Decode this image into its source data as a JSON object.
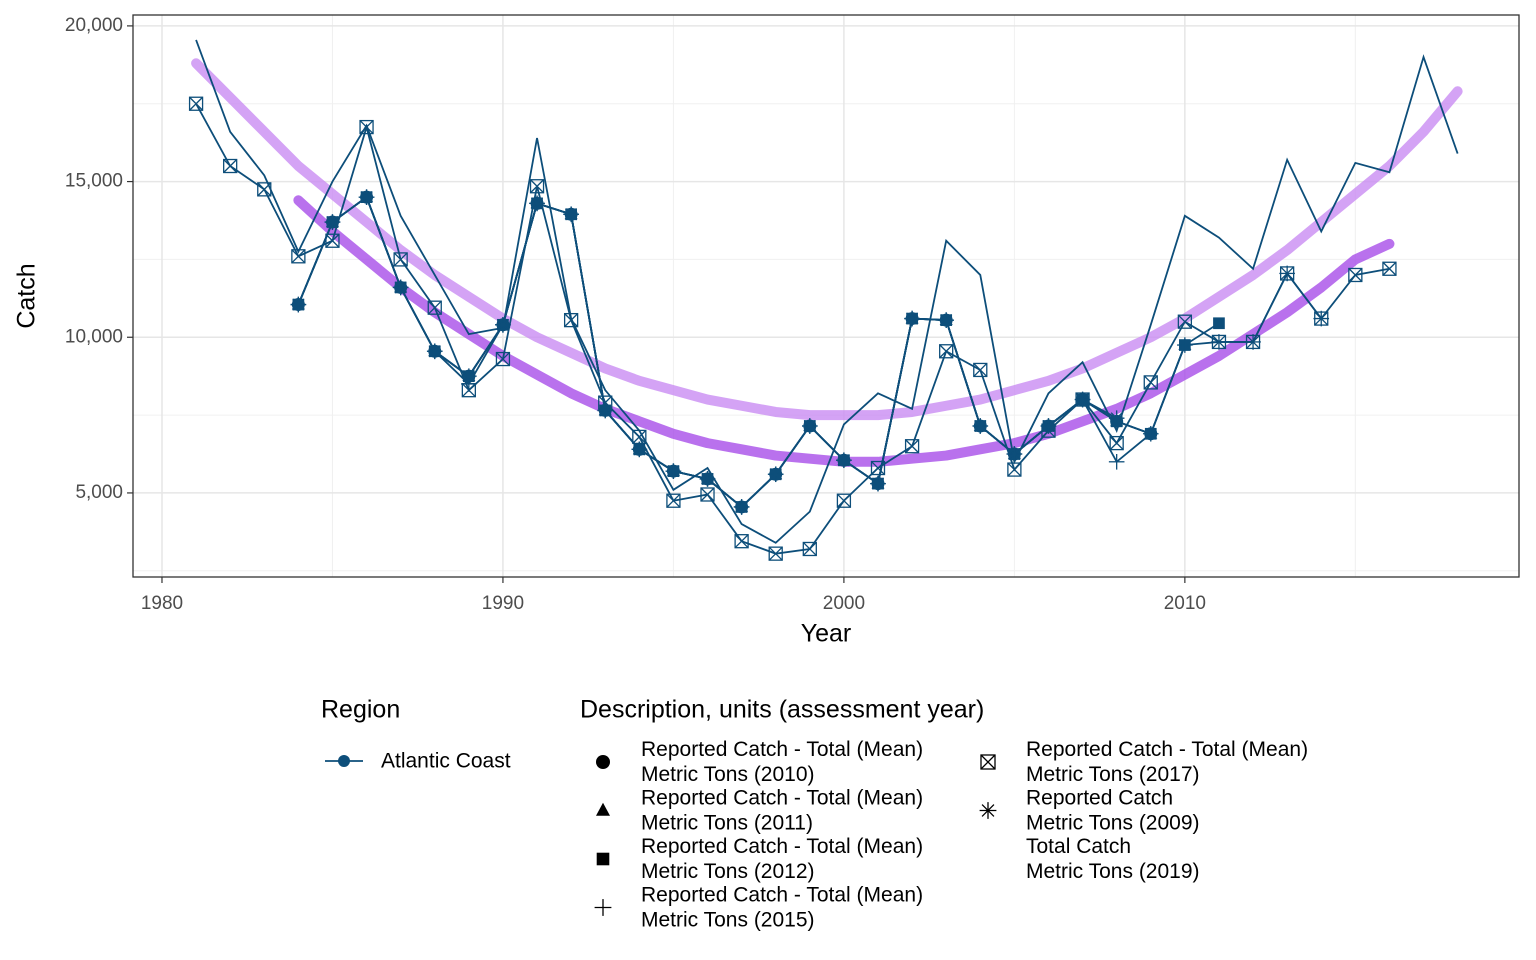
{
  "chart_data": {
    "type": "line",
    "x_label": "Year",
    "y_label": "Catch",
    "x": [
      1981,
      1982,
      1983,
      1984,
      1985,
      1986,
      1987,
      1988,
      1989,
      1990,
      1991,
      1992,
      1993,
      1994,
      1995,
      1996,
      1997,
      1998,
      1999,
      2000,
      2001,
      2002,
      2003,
      2004,
      2005,
      2006,
      2007,
      2008,
      2009,
      2010,
      2011,
      2012,
      2013,
      2014,
      2015,
      2016,
      2017,
      2018
    ],
    "xlim": [
      1979.15,
      2019.8
    ],
    "xticks": [
      1980,
      1990,
      2000,
      2010
    ],
    "xminor": [
      1985,
      1995,
      2005,
      2015
    ],
    "ylim": [
      2300,
      20350
    ],
    "yticks": [
      {
        "value": 5000,
        "label": "5,000"
      },
      {
        "value": 10000,
        "label": "10,000"
      },
      {
        "value": 15000,
        "label": "15,000"
      },
      {
        "value": 20000,
        "label": "20,000"
      }
    ],
    "yminor": [
      2500,
      7500,
      12500,
      17500
    ],
    "grid": true,
    "region_legend": {
      "title": "Region",
      "entries": [
        {
          "name": "Atlantic Coast",
          "color": "#0d4e7a"
        }
      ]
    },
    "shape_legend_title": "Description, units (assessment year)",
    "series": [
      {
        "name": "Reported Catch - Total (Mean)\nMetric Tons (2010)",
        "shape": "circle",
        "color": "#0d4e7a",
        "values": [
          null,
          null,
          null,
          11050,
          13700,
          14500,
          11600,
          9550,
          8750,
          10400,
          14300,
          13950,
          7650,
          6400,
          5700,
          5450,
          4550,
          5600,
          7150,
          6050,
          5300,
          10600,
          10550,
          7150,
          6250,
          7150,
          8000,
          7300,
          6900,
          null,
          null,
          null,
          null,
          null,
          null,
          null,
          null,
          null
        ]
      },
      {
        "name": "Reported Catch - Total (Mean)\nMetric Tons (2011)",
        "shape": "triangle",
        "color": "#0d4e7a",
        "values": [
          null,
          null,
          null,
          11050,
          13700,
          14500,
          11600,
          9550,
          8750,
          10400,
          14300,
          13950,
          7650,
          6400,
          5700,
          5450,
          4550,
          5600,
          7150,
          6050,
          5300,
          10600,
          10550,
          7150,
          6250,
          7150,
          8000,
          7300,
          6900,
          9750,
          null,
          null,
          null,
          null,
          null,
          null,
          null,
          null
        ]
      },
      {
        "name": "Reported Catch - Total (Mean)\nMetric Tons (2012)",
        "shape": "square",
        "color": "#0d4e7a",
        "values": [
          null,
          null,
          null,
          11050,
          13700,
          14500,
          11600,
          9550,
          8750,
          10400,
          14300,
          13950,
          7650,
          6400,
          5700,
          5450,
          4550,
          5600,
          7150,
          6050,
          5300,
          10600,
          10550,
          7150,
          6250,
          7150,
          8000,
          7300,
          6900,
          9750,
          10450,
          null,
          null,
          null,
          null,
          null,
          null,
          null
        ]
      },
      {
        "name": "Reported Catch - Total (Mean)\nMetric Tons (2015)",
        "shape": "plus",
        "color": "#0d4e7a",
        "values": [
          null,
          null,
          null,
          11050,
          13700,
          14500,
          11600,
          9550,
          8500,
          10400,
          14300,
          13950,
          7650,
          6400,
          5700,
          5450,
          4550,
          5600,
          7150,
          6050,
          5300,
          10600,
          10550,
          7150,
          6250,
          7150,
          8000,
          6000,
          6900,
          9750,
          9850,
          9850,
          12050,
          10600,
          null,
          null,
          null,
          null
        ]
      },
      {
        "name": "Reported Catch - Total (Mean)\nMetric Tons (2017)",
        "shape": "boxx",
        "color": "#0d4e7a",
        "values": [
          17500,
          15500,
          14750,
          12600,
          13100,
          16750,
          12500,
          10950,
          8300,
          9300,
          14850,
          10550,
          7900,
          6800,
          4750,
          4950,
          3450,
          3050,
          3200,
          4750,
          5800,
          6500,
          9550,
          8950,
          5750,
          7000,
          8000,
          6600,
          8550,
          10500,
          9850,
          9850,
          12050,
          10600,
          12000,
          12200,
          null,
          null
        ]
      },
      {
        "name": "Reported Catch\nMetric Tons (2009)",
        "shape": "asterisk",
        "color": "#0d4e7a",
        "values": [
          null,
          null,
          null,
          11050,
          13700,
          14500,
          11600,
          9550,
          8750,
          10400,
          14300,
          13950,
          7650,
          6400,
          5700,
          5450,
          4550,
          5600,
          7150,
          6050,
          5300,
          10600,
          10550,
          7150,
          6250,
          7150,
          8000,
          7400,
          null,
          null,
          null,
          null,
          null,
          null,
          null,
          null,
          null,
          null
        ]
      },
      {
        "name": "Total Catch\nMetric Tons (2019)",
        "shape": "none",
        "color": "#0d4e7a",
        "values": [
          19550,
          16600,
          15200,
          12750,
          15000,
          16800,
          13900,
          12000,
          10100,
          10300,
          16400,
          10600,
          8300,
          7000,
          5100,
          5800,
          4000,
          3400,
          4400,
          7200,
          8200,
          7700,
          13100,
          12000,
          6000,
          8200,
          9200,
          7000,
          10400,
          13900,
          13200,
          12200,
          15700,
          13400,
          15600,
          15300,
          19000,
          15900
        ]
      }
    ],
    "trend_lines": [
      {
        "color": "#c98cf2",
        "values": [
          18800,
          17700,
          16600,
          15500,
          14600,
          13700,
          12800,
          12000,
          11300,
          10600,
          10000,
          9500,
          9000,
          8600,
          8300,
          8000,
          7800,
          7600,
          7500,
          7500,
          7500,
          7600,
          7800,
          8000,
          8300,
          8600,
          9000,
          9500,
          10000,
          10600,
          11300,
          12000,
          12800,
          13700,
          14600,
          15500,
          16600,
          17900
        ]
      },
      {
        "color": "#a84ee8",
        "values": [
          null,
          null,
          null,
          14400,
          13400,
          12500,
          11600,
          10800,
          10100,
          9400,
          8800,
          8200,
          7700,
          7300,
          6900,
          6600,
          6400,
          6200,
          6100,
          6000,
          6000,
          6100,
          6200,
          6400,
          6600,
          6900,
          7300,
          7700,
          8200,
          8800,
          9400,
          10100,
          10800,
          11600,
          12500,
          13000,
          null,
          null
        ]
      }
    ]
  }
}
